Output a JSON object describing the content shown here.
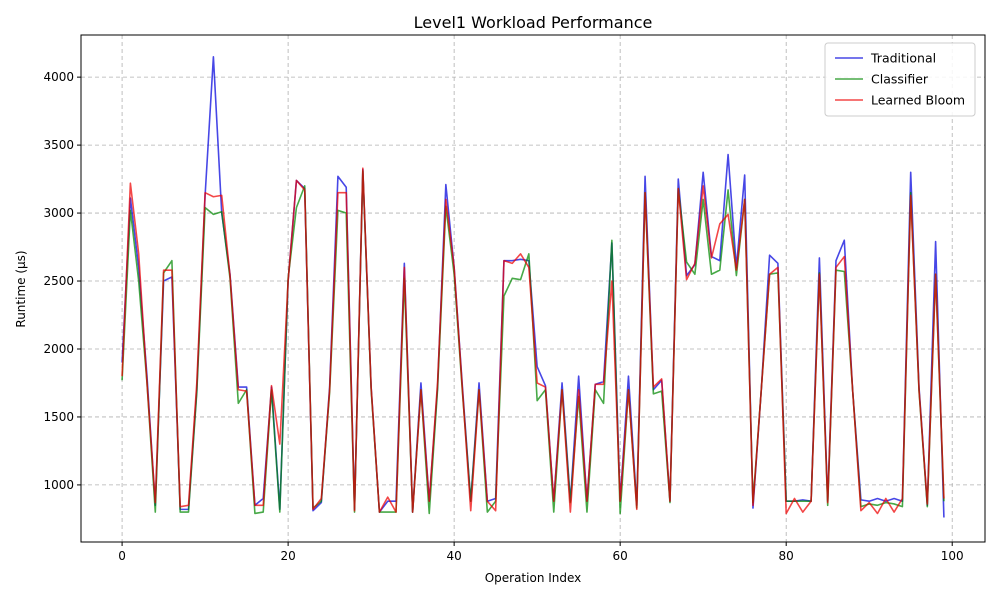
{
  "chart_data": {
    "type": "line",
    "title": "Level1 Workload Performance",
    "xlabel": "Operation Index",
    "ylabel": "Runtime (µs)",
    "xlim": [
      -4.95,
      103.95
    ],
    "ylim": [
      580,
      4310
    ],
    "xticks": [
      0,
      20,
      40,
      60,
      80,
      100
    ],
    "yticks": [
      1000,
      1500,
      2000,
      2500,
      3000,
      3500,
      4000
    ],
    "grid": true,
    "legend_position": "top-right",
    "series": [
      {
        "name": "Traditional",
        "color": "#0000dd",
        "values": [
          1900,
          3110,
          2600,
          1800,
          850,
          2500,
          2530,
          820,
          820,
          1700,
          3130,
          4150,
          3000,
          2550,
          1720,
          1720,
          850,
          900,
          1720,
          820,
          2500,
          3240,
          3180,
          810,
          870,
          1720,
          3270,
          3190,
          820,
          3320,
          1720,
          800,
          880,
          880,
          2630,
          800,
          1750,
          880,
          1720,
          3210,
          2600,
          1720,
          880,
          1750,
          880,
          900,
          2650,
          2650,
          2660,
          2650,
          1870,
          1730,
          880,
          1750,
          880,
          1800,
          880,
          1740,
          1760,
          2780,
          880,
          1800,
          850,
          3270,
          1700,
          1770,
          880,
          3250,
          2540,
          2620,
          3300,
          2680,
          2650,
          3430,
          2600,
          3280,
          830,
          1700,
          2690,
          2630,
          880,
          880,
          890,
          880,
          2670,
          880,
          2650,
          2800,
          1700,
          890,
          880,
          900,
          880,
          900,
          880,
          3300,
          1720,
          850,
          2790,
          760
        ]
      },
      {
        "name": "Classifier",
        "color": "#008800",
        "values": [
          1770,
          3020,
          2500,
          1750,
          800,
          2560,
          2650,
          800,
          800,
          1680,
          3040,
          2990,
          3010,
          2520,
          1600,
          1700,
          790,
          800,
          1700,
          800,
          2520,
          3040,
          3200,
          830,
          880,
          1680,
          3020,
          3000,
          800,
          3310,
          1700,
          800,
          800,
          800,
          2520,
          800,
          1700,
          790,
          1700,
          3050,
          2550,
          1680,
          880,
          1700,
          800,
          880,
          2390,
          2520,
          2510,
          2700,
          1620,
          1700,
          800,
          1700,
          870,
          1650,
          800,
          1700,
          1600,
          2800,
          790,
          1700,
          830,
          3150,
          1670,
          1690,
          870,
          3180,
          2640,
          2550,
          3100,
          2550,
          2580,
          3170,
          2540,
          3100,
          870,
          1700,
          2550,
          2560,
          880,
          880,
          880,
          880,
          2560,
          850,
          2580,
          2570,
          1700,
          840,
          860,
          850,
          870,
          860,
          840,
          3150,
          1690,
          840,
          2550,
          880
        ]
      },
      {
        "name": "Learned Bloom",
        "color": "#ee0000",
        "values": [
          1800,
          3220,
          2700,
          1750,
          870,
          2580,
          2580,
          840,
          850,
          1750,
          3150,
          3120,
          3130,
          2540,
          1700,
          1690,
          850,
          850,
          1730,
          1300,
          2500,
          3240,
          3170,
          820,
          900,
          1700,
          3150,
          3150,
          810,
          3330,
          1720,
          800,
          910,
          800,
          2600,
          800,
          1700,
          880,
          1750,
          3100,
          2600,
          1700,
          810,
          1700,
          880,
          810,
          2650,
          2630,
          2700,
          2600,
          1750,
          1720,
          880,
          1700,
          800,
          1700,
          880,
          1740,
          1740,
          2500,
          880,
          1700,
          820,
          3150,
          1720,
          1780,
          880,
          3180,
          2510,
          2630,
          3200,
          2670,
          2920,
          2990,
          2580,
          3100,
          850,
          1700,
          2550,
          2600,
          790,
          900,
          800,
          880,
          2550,
          870,
          2600,
          2680,
          1700,
          810,
          870,
          790,
          900,
          800,
          900,
          3130,
          1700,
          860,
          2550,
          900
        ]
      }
    ]
  }
}
